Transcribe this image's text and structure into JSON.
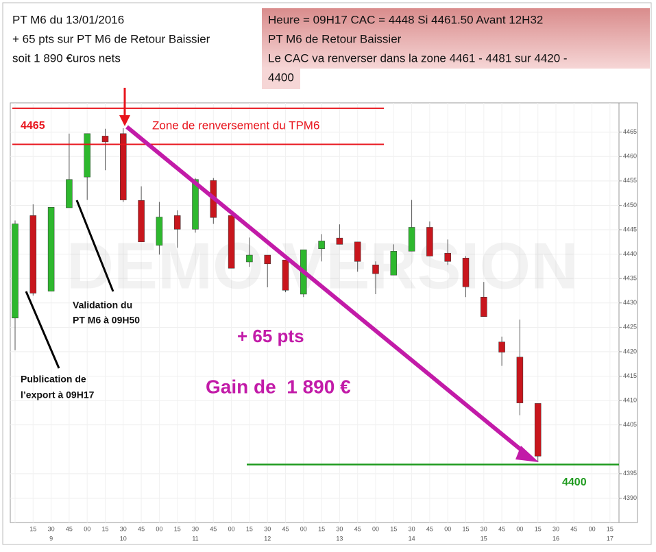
{
  "chart_data": {
    "type": "candlestick",
    "header_left": [
      "PT M6 du 13/01/2016",
      "+ 65 pts sur PT M6 de Retour Baissier",
      "soit 1 890 €uros nets"
    ],
    "header_right": [
      "Heure = 09H17 CAC = 4448 Si 4461.50 Avant 12H32",
      "PT M6 de Retour Baissier",
      "Le CAC va renverser dans la zone 4461 - 4481 sur 4420 -",
      "4400"
    ],
    "watermark": "DEMO VERSION",
    "categories": [
      null,
      "15",
      "30",
      "45",
      "00",
      "15",
      "30",
      "45",
      "00",
      "15",
      "30",
      "45",
      "00",
      "15",
      "30",
      "45",
      "00",
      "15",
      "30",
      "45",
      "00",
      "15",
      "30",
      "45",
      "00",
      "15",
      "30",
      "45",
      "00",
      "15",
      "30",
      "45",
      "00",
      "15"
    ],
    "hour_labels": [
      null,
      null,
      "9",
      null,
      null,
      null,
      "10",
      null,
      null,
      null,
      "11",
      null,
      null,
      null,
      "12",
      null,
      null,
      null,
      "13",
      null,
      null,
      null,
      "14",
      null,
      null,
      null,
      "15",
      null,
      null,
      null,
      "16",
      null,
      null,
      "17"
    ],
    "open": [
      4426.9,
      4447.9,
      4432.4,
      4449.5,
      4455.8,
      4464.2,
      4464.7,
      4451.0,
      4441.8,
      4447.9,
      4445.1,
      4455.1,
      4447.9,
      4438.4,
      4439.8,
      4438.8,
      4431.8,
      4441.1,
      4443.3,
      4442.5,
      4437.8,
      4435.7,
      4440.6,
      4445.5,
      4440.2,
      4439.2,
      4431.2,
      4422.0,
      4418.9,
      4409.4,
      null,
      null,
      null,
      null
    ],
    "high": [
      4446.9,
      4450.2,
      4449.6,
      4464.7,
      4464.7,
      4465.7,
      4465.8,
      4453.9,
      4450.7,
      4449.0,
      4455.6,
      4455.6,
      4447.9,
      4443.4,
      4439.8,
      4438.8,
      4440.9,
      4444.1,
      4446.1,
      4442.5,
      4438.5,
      4442.0,
      4451.1,
      4446.7,
      4443.0,
      4439.6,
      4434.3,
      4423.1,
      4426.6,
      4409.4,
      null,
      null,
      null,
      null
    ],
    "low": [
      4420.3,
      4431.5,
      4432.4,
      4449.5,
      4451.1,
      4457.2,
      4450.7,
      4442.5,
      4439.9,
      4441.3,
      4444.4,
      4446.2,
      4437.1,
      4437.4,
      4433.2,
      4432.2,
      4431.2,
      4438.5,
      4442.0,
      4436.4,
      4431.8,
      4435.7,
      4440.6,
      4439.6,
      4437.8,
      4431.2,
      4427.2,
      4417.1,
      4407.0,
      4397.5,
      null,
      null,
      null,
      null
    ],
    "close": [
      4446.2,
      4432.0,
      4449.6,
      4455.3,
      4464.7,
      4463.0,
      4451.1,
      4442.5,
      4447.6,
      4445.1,
      4455.3,
      4447.5,
      4437.1,
      4439.8,
      4438.0,
      4432.6,
      4440.9,
      4442.7,
      4442.0,
      4438.5,
      4436.0,
      4440.6,
      4445.5,
      4439.6,
      4438.5,
      4433.3,
      4427.2,
      4419.9,
      4409.5,
      4398.6,
      null,
      null,
      null,
      null
    ],
    "up_color": "#2eb82e",
    "down_color": "#c8161d",
    "ylim": [
      4385,
      4471
    ],
    "yticks": [
      4390,
      4395,
      4405,
      4410,
      4415,
      4420,
      4425,
      4430,
      4435,
      4440,
      4445,
      4450,
      4455,
      4460,
      4465
    ],
    "grid": true,
    "zone_lines": [
      4469.9,
      4462.5
    ],
    "zone_color": "#e8141c",
    "zone_label": "4465",
    "zone_text": "Zone de renversement du TPM6",
    "target_line": 4396.9,
    "target_color": "#1e9a1e",
    "target_label": "4400",
    "gain_pts": "+ 65 pts",
    "gain_eur": "Gain de  1 890 €",
    "note_validation": [
      "Validation du",
      "PT M6 à 09H50"
    ],
    "note_publication": [
      "Publication de",
      "l’export à 09H17"
    ]
  }
}
